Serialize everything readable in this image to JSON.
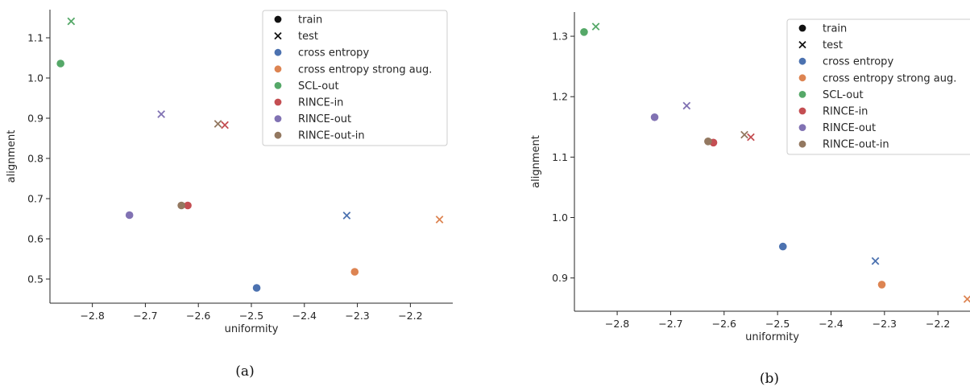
{
  "chart_data": [
    {
      "type": "scatter",
      "caption": "(a)",
      "xlabel": "uniformity",
      "ylabel": "alignment",
      "xlim": [
        -2.88,
        -2.12
      ],
      "ylim": [
        0.44,
        1.17
      ],
      "xticks": [
        -2.8,
        -2.7,
        -2.6,
        -2.5,
        -2.4,
        -2.3,
        -2.2
      ],
      "xtick_labels": [
        "−2.8",
        "−2.7",
        "−2.6",
        "−2.5",
        "−2.4",
        "−2.3",
        "−2.2"
      ],
      "yticks": [
        0.5,
        0.6,
        0.7,
        0.8,
        0.9,
        1.0,
        1.1
      ],
      "ytick_labels": [
        "0.5",
        "0.6",
        "0.7",
        "0.8",
        "0.9",
        "1.0",
        "1.1"
      ],
      "grid": false,
      "legend_position": "top-right",
      "legend_markers": [
        {
          "label": "train",
          "marker": "circle"
        },
        {
          "label": "test",
          "marker": "x"
        }
      ],
      "series": [
        {
          "name": "cross entropy",
          "color": "#4c72b0",
          "train": {
            "x": -2.49,
            "y": 0.478
          },
          "test": {
            "x": -2.32,
            "y": 0.658
          }
        },
        {
          "name": "cross entropy strong aug.",
          "color": "#dd8452",
          "train": {
            "x": -2.305,
            "y": 0.518
          },
          "test": {
            "x": -2.145,
            "y": 0.648
          }
        },
        {
          "name": "SCL-out",
          "color": "#55a868",
          "train": {
            "x": -2.86,
            "y": 1.036
          },
          "test": {
            "x": -2.84,
            "y": 1.141
          }
        },
        {
          "name": "RINCE-in",
          "color": "#c44e52",
          "train": {
            "x": -2.62,
            "y": 0.683
          },
          "test": {
            "x": -2.55,
            "y": 0.883
          }
        },
        {
          "name": "RINCE-out",
          "color": "#8172b3",
          "train": {
            "x": -2.73,
            "y": 0.659
          },
          "test": {
            "x": -2.67,
            "y": 0.91
          }
        },
        {
          "name": "RINCE-out-in",
          "color": "#937860",
          "train": {
            "x": -2.632,
            "y": 0.683
          },
          "test": {
            "x": -2.563,
            "y": 0.886
          }
        }
      ]
    },
    {
      "type": "scatter",
      "caption": "(b)",
      "xlabel": "uniformity",
      "ylabel": "alignment",
      "xlim": [
        -2.88,
        -2.14
      ],
      "ylim": [
        0.845,
        1.34
      ],
      "xticks": [
        -2.8,
        -2.7,
        -2.6,
        -2.5,
        -2.4,
        -2.3,
        -2.2
      ],
      "xtick_labels": [
        "−2.8",
        "−2.7",
        "−2.6",
        "−2.5",
        "−2.4",
        "−2.3",
        "−2.2"
      ],
      "yticks": [
        0.9,
        1.0,
        1.1,
        1.2,
        1.3
      ],
      "ytick_labels": [
        "0.9",
        "1.0",
        "1.1",
        "1.2",
        "1.3"
      ],
      "grid": false,
      "legend_position": "top-right",
      "legend_markers": [
        {
          "label": "train",
          "marker": "circle"
        },
        {
          "label": "test",
          "marker": "x"
        }
      ],
      "series": [
        {
          "name": "cross entropy",
          "color": "#4c72b0",
          "train": {
            "x": -2.49,
            "y": 0.952
          },
          "test": {
            "x": -2.317,
            "y": 0.928
          }
        },
        {
          "name": "cross entropy strong aug.",
          "color": "#dd8452",
          "train": {
            "x": -2.305,
            "y": 0.889
          },
          "test": {
            "x": -2.145,
            "y": 0.865
          }
        },
        {
          "name": "SCL-out",
          "color": "#55a868",
          "train": {
            "x": -2.862,
            "y": 1.307
          },
          "test": {
            "x": -2.84,
            "y": 1.316
          }
        },
        {
          "name": "RINCE-in",
          "color": "#c44e52",
          "train": {
            "x": -2.62,
            "y": 1.124
          },
          "test": {
            "x": -2.55,
            "y": 1.133
          }
        },
        {
          "name": "RINCE-out",
          "color": "#8172b3",
          "train": {
            "x": -2.73,
            "y": 1.166
          },
          "test": {
            "x": -2.67,
            "y": 1.185
          }
        },
        {
          "name": "RINCE-out-in",
          "color": "#937860",
          "train": {
            "x": -2.63,
            "y": 1.126
          },
          "test": {
            "x": -2.562,
            "y": 1.137
          }
        }
      ]
    }
  ]
}
